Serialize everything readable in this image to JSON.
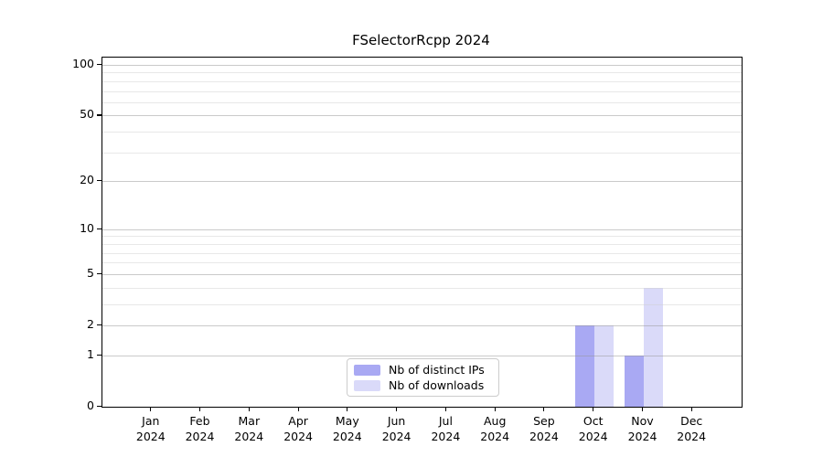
{
  "title": "FSelectorRcpp 2024",
  "chart_data": {
    "type": "bar",
    "title": "FSelectorRcpp 2024",
    "categories": [
      "Jan 2024",
      "Feb 2024",
      "Mar 2024",
      "Apr 2024",
      "May 2024",
      "Jun 2024",
      "Jul 2024",
      "Aug 2024",
      "Sep 2024",
      "Oct 2024",
      "Nov 2024",
      "Dec 2024"
    ],
    "series": [
      {
        "name": "Nb of distinct IPs",
        "color": "#a9a9f3",
        "values": [
          0,
          0,
          0,
          0,
          0,
          0,
          0,
          0,
          0,
          2,
          1,
          0
        ]
      },
      {
        "name": "Nb of downloads",
        "color": "#dadaf9",
        "values": [
          0,
          0,
          0,
          0,
          0,
          0,
          0,
          0,
          0,
          2,
          4,
          0
        ]
      }
    ],
    "xlabel": "",
    "ylabel": "",
    "yscale": "log1p",
    "ylim": [
      0,
      100
    ],
    "yticks": [
      0,
      1,
      2,
      5,
      10,
      20,
      50,
      100
    ],
    "minor_gridlines": [
      3,
      4,
      6,
      7,
      8,
      9,
      30,
      40,
      60,
      70,
      80,
      90
    ],
    "grid": true,
    "legend_position": "lower center",
    "colors": {
      "axis": "#000000",
      "major_grid": "#bdbdbd",
      "minor_grid": "#e6e6e6",
      "background": "#ffffff"
    }
  }
}
